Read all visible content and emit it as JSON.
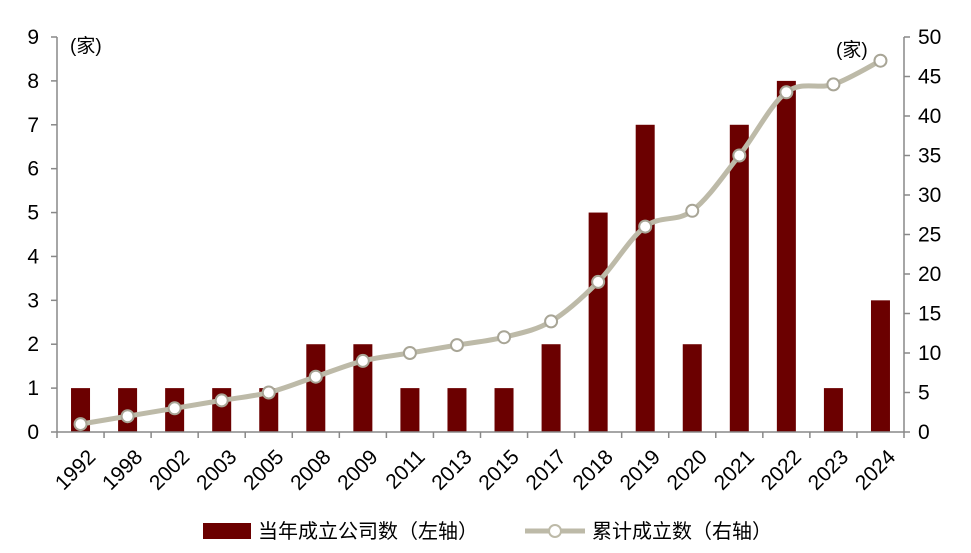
{
  "chart_data": {
    "type": "bar+line",
    "categories": [
      "1992",
      "1998",
      "2002",
      "2003",
      "2005",
      "2008",
      "2009",
      "2011",
      "2013",
      "2015",
      "2017",
      "2018",
      "2019",
      "2020",
      "2021",
      "2022",
      "2023",
      "2024"
    ],
    "series": [
      {
        "name": "当年成立公司数（左轴）",
        "type": "bar",
        "axis": "left",
        "color": "#6b0000",
        "values": [
          1,
          1,
          1,
          1,
          1,
          2,
          2,
          1,
          1,
          1,
          2,
          5,
          7,
          2,
          7,
          8,
          1,
          3
        ]
      },
      {
        "name": "累计成立数（右轴）",
        "type": "line",
        "axis": "right",
        "color": "#bdbaa8",
        "values": [
          1,
          2,
          3,
          4,
          5,
          7,
          9,
          10,
          11,
          12,
          14,
          19,
          26,
          28,
          35,
          43,
          44,
          47
        ]
      }
    ],
    "left_axis": {
      "unit": "(家)",
      "min": 0,
      "max": 9,
      "step": 1
    },
    "right_axis": {
      "unit": "(家)",
      "min": 0,
      "max": 50,
      "step": 5
    },
    "legend_position": "bottom",
    "grid": false
  }
}
